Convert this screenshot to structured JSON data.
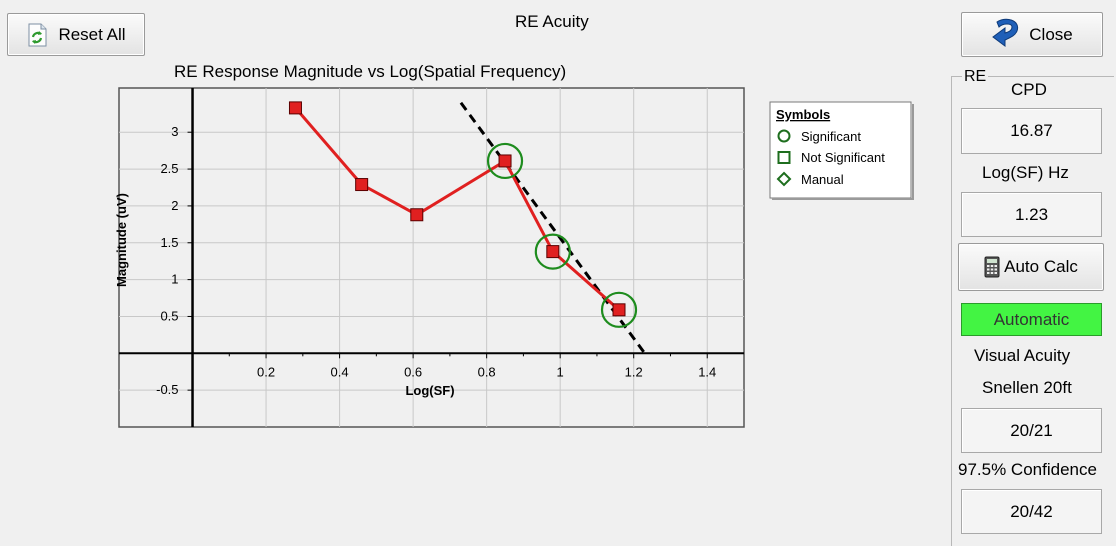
{
  "toolbar": {
    "reset_label": "Reset All",
    "close_label": "Close"
  },
  "page_title": "RE Acuity",
  "legend": {
    "title": "Symbols",
    "items": [
      {
        "shape": "circle",
        "label": "Significant"
      },
      {
        "shape": "square",
        "label": "Not Significant"
      },
      {
        "shape": "diamond",
        "label": "Manual"
      }
    ]
  },
  "panel": {
    "legend": "RE",
    "cpd_label": "CPD",
    "cpd_value": "16.87",
    "logsf_label": "Log(SF) Hz",
    "logsf_value": "1.23",
    "autocalc_label": "Auto Calc",
    "mode_label": "Automatic",
    "acuity_label": "Visual Acuity",
    "snellen_label": "Snellen 20ft",
    "snellen_value": "20/21",
    "confidence_label": "97.5% Confidence",
    "confidence_value": "20/42"
  },
  "colors": {
    "series": "#e02020",
    "marker_fill": "#e02020",
    "significant_ring": "#1e8c1e",
    "mode_badge": "#43f443",
    "regression": "#000000"
  },
  "chart_data": {
    "type": "line",
    "title": "RE Response Magnitude vs Log(Spatial Frequency)",
    "xlabel": "Log(SF)",
    "ylabel": "Magnitude (uV)",
    "xlim": [
      -0.2,
      1.5
    ],
    "ylim": [
      -1.0,
      3.6
    ],
    "xticks": [
      0.2,
      0.4,
      0.6,
      0.8,
      1,
      1.2,
      1.4
    ],
    "yticks": [
      -0.5,
      0.5,
      1,
      1.5,
      2,
      2.5,
      3
    ],
    "grid": true,
    "legend_position": "top-right, outside plot",
    "series": [
      {
        "x": [
          0.28,
          0.46,
          0.61,
          0.85,
          0.98,
          1.16
        ],
        "y": [
          3.33,
          2.29,
          1.88,
          2.61,
          1.38,
          0.59
        ],
        "significant": [
          false,
          false,
          false,
          true,
          true,
          true
        ]
      }
    ],
    "regression_line": {
      "x": [
        0.73,
        1.23
      ],
      "y": [
        3.4,
        0.0
      ],
      "style": "dashed"
    }
  }
}
